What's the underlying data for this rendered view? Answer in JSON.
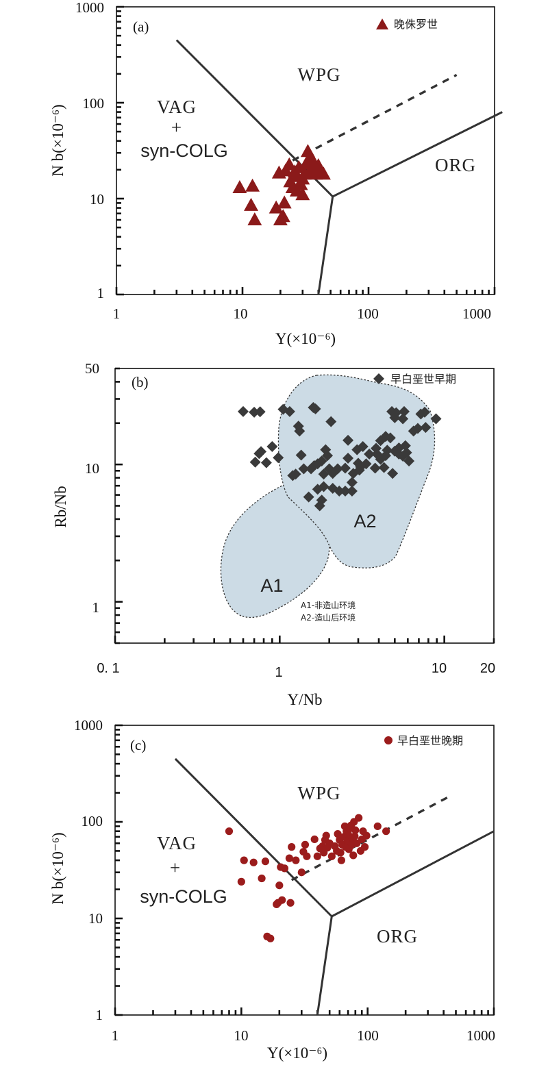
{
  "colors": {
    "triangle": "#8b1a1a",
    "diamond": "#3a3a3a",
    "circle": "#9b1c1c",
    "zone_fill": "#ccdbe5",
    "line": "#333333"
  },
  "chart_data": [
    {
      "type": "scatter",
      "panel_label": "(a)",
      "xscale": "log",
      "yscale": "log",
      "xlim": [
        1,
        1000
      ],
      "ylim": [
        1,
        1000
      ],
      "xlabel": "Y(×10⁻⁶)",
      "ylabel": "N b(×10⁻⁶)",
      "x_ticks": [
        "1",
        "10",
        "100",
        "1000"
      ],
      "y_ticks": [
        "1",
        "10",
        "100",
        "1000"
      ],
      "fields": [
        "VAG",
        "+",
        "syn-COLG",
        "WPG",
        "ORG"
      ],
      "legend_position": "top-right",
      "series": [
        {
          "name": "晚侏罗世",
          "marker": "triangle",
          "points": [
            [
              9.5,
              13
            ],
            [
              12,
              13.5
            ],
            [
              11.7,
              8.5
            ],
            [
              12.5,
              6
            ],
            [
              18.5,
              8
            ],
            [
              20,
              6
            ],
            [
              21,
              6.5
            ],
            [
              21.5,
              9
            ],
            [
              19.5,
              18.5
            ],
            [
              22,
              19.5
            ],
            [
              24,
              15
            ],
            [
              25,
              13
            ],
            [
              26,
              19
            ],
            [
              27,
              17
            ],
            [
              28,
              21
            ],
            [
              29,
              14
            ],
            [
              30,
              11
            ],
            [
              31,
              18
            ],
            [
              32,
              23
            ],
            [
              33,
              31
            ],
            [
              34,
              19
            ],
            [
              36,
              25
            ],
            [
              37,
              21
            ],
            [
              38,
              18
            ],
            [
              40,
              22
            ],
            [
              42,
              19
            ],
            [
              44,
              18
            ],
            [
              27,
              12
            ],
            [
              30,
              16
            ],
            [
              23.5,
              22.5
            ],
            [
              34,
              26
            ],
            [
              28.5,
              14
            ]
          ]
        }
      ],
      "boundaries": [
        {
          "style": "solid",
          "points": [
            [
              3,
              450
            ],
            [
              52,
              10.5
            ]
          ]
        },
        {
          "style": "solid",
          "points": [
            [
              52,
              10.5
            ],
            [
              40,
              1
            ]
          ]
        },
        {
          "style": "solid",
          "points": [
            [
              52,
              10.5
            ],
            [
              1150,
              80
            ]
          ]
        },
        {
          "style": "dashed",
          "points": [
            [
              25,
              25
            ],
            [
              500,
              195
            ]
          ]
        }
      ]
    },
    {
      "type": "scatter",
      "panel_label": "(b)",
      "xscale": "log",
      "yscale": "log",
      "xlim": [
        0.1,
        20
      ],
      "ylim": [
        0.5,
        50
      ],
      "xlabel": "Y/Nb",
      "ylabel": "Rb/Nb",
      "x_ticks": [
        "0. 1",
        "1",
        "10",
        "20"
      ],
      "y_ticks": [
        "1",
        "10",
        "50"
      ],
      "legend_position": "top-right",
      "zones": [
        {
          "label": "A1",
          "description": "A1-非造山环境"
        },
        {
          "label": "A2",
          "description": "A2-造山后环境"
        }
      ],
      "series": [
        {
          "name": "早白垩世早期",
          "marker": "diamond",
          "points": [
            [
              0.6,
              24.3
            ],
            [
              0.7,
              24
            ],
            [
              0.76,
              24.2
            ],
            [
              1.05,
              25.2
            ],
            [
              1.15,
              24.3
            ],
            [
              1.6,
              26
            ],
            [
              1.65,
              25.4
            ],
            [
              1.3,
              19
            ],
            [
              1.32,
              17.5
            ],
            [
              2.05,
              20.5
            ],
            [
              4.8,
              24.3
            ],
            [
              5.1,
              23.8
            ],
            [
              5.7,
              24.3
            ],
            [
              7.2,
              23.3
            ],
            [
              7.6,
              24
            ],
            [
              8.9,
              21.5
            ],
            [
              5.0,
              21.9
            ],
            [
              5.6,
              21.5
            ],
            [
              6.9,
              18.3
            ],
            [
              6.5,
              17.5
            ],
            [
              7.7,
              18.6
            ],
            [
              4.4,
              16
            ],
            [
              4.7,
              15.6
            ],
            [
              2.6,
              15
            ],
            [
              0.75,
              12
            ],
            [
              0.77,
              12.4
            ],
            [
              0.9,
              13.5
            ],
            [
              0.98,
              11.2
            ],
            [
              0.71,
              10.4
            ],
            [
              0.83,
              10.3
            ],
            [
              1.2,
              8.3
            ],
            [
              1.25,
              8.5
            ],
            [
              1.35,
              11.7
            ],
            [
              1.4,
              9.3
            ],
            [
              1.55,
              9.3
            ],
            [
              1.62,
              9.8
            ],
            [
              1.7,
              10.1
            ],
            [
              1.5,
              5.8
            ],
            [
              1.8,
              10.6
            ],
            [
              1.85,
              8.5
            ],
            [
              1.9,
              12.8
            ],
            [
              1.95,
              11.6
            ],
            [
              2.0,
              9.3
            ],
            [
              2.1,
              8.6
            ],
            [
              2.25,
              9.3
            ],
            [
              2.5,
              9.4
            ],
            [
              2.6,
              11.1
            ],
            [
              2.75,
              7.4
            ],
            [
              2.8,
              8.6
            ],
            [
              2.95,
              12.8
            ],
            [
              3.0,
              10.2
            ],
            [
              3.05,
              9.1
            ],
            [
              3.1,
              9.6
            ],
            [
              3.35,
              10.1
            ],
            [
              3.2,
              13.5
            ],
            [
              3.85,
              13.1
            ],
            [
              4.4,
              11.6
            ],
            [
              4.5,
              12.7
            ],
            [
              5.0,
              12.5
            ],
            [
              5.3,
              13.2
            ],
            [
              5.8,
              13.7
            ],
            [
              6.1,
              10.6
            ],
            [
              4.1,
              10.9
            ],
            [
              4.85,
              8.6
            ],
            [
              3.5,
              11.9
            ],
            [
              1.7,
              6.6
            ],
            [
              1.8,
              5.5
            ],
            [
              1.75,
              5.0
            ],
            [
              1.85,
              6.9
            ],
            [
              2.1,
              6.7
            ],
            [
              2.3,
              6.4
            ],
            [
              2.5,
              6.4
            ],
            [
              2.75,
              6.4
            ],
            [
              3.8,
              9.4
            ],
            [
              4.3,
              9.5
            ],
            [
              3.9,
              11.9
            ],
            [
              5.6,
              11.5
            ],
            [
              5.9,
              12.2
            ],
            [
              4.1,
              14.9
            ],
            [
              5.3,
              11.9
            ]
          ]
        }
      ]
    },
    {
      "type": "scatter",
      "panel_label": "(c)",
      "xscale": "log",
      "yscale": "log",
      "xlim": [
        1,
        1000
      ],
      "ylim": [
        1,
        1000
      ],
      "xlabel": "Y(×10⁻⁶)",
      "ylabel": "N b(×10⁻⁶)",
      "x_ticks": [
        "1",
        "10",
        "100",
        "1000"
      ],
      "y_ticks": [
        "1",
        "10",
        "100",
        "1000"
      ],
      "fields": [
        "VAG",
        "+",
        "syn-COLG",
        "WPG",
        "ORG"
      ],
      "legend_position": "top-right",
      "series": [
        {
          "name": "早白垩世晚期",
          "marker": "circle",
          "points": [
            [
              8,
              80
            ],
            [
              10,
              24
            ],
            [
              10.5,
              40
            ],
            [
              12.5,
              38
            ],
            [
              14.5,
              26
            ],
            [
              15.5,
              39
            ],
            [
              16,
              6.5
            ],
            [
              17,
              6.2
            ],
            [
              19,
              14
            ],
            [
              19.5,
              14.5
            ],
            [
              20,
              22
            ],
            [
              20.5,
              34
            ],
            [
              21,
              15.5
            ],
            [
              22,
              33
            ],
            [
              24.5,
              14.5
            ],
            [
              24,
              42
            ],
            [
              25,
              55
            ],
            [
              27,
              40
            ],
            [
              30,
              30
            ],
            [
              31,
              49
            ],
            [
              32,
              58
            ],
            [
              33,
              44
            ],
            [
              38,
              66
            ],
            [
              40,
              44
            ],
            [
              42,
              53
            ],
            [
              44,
              56
            ],
            [
              45,
              48
            ],
            [
              46,
              65
            ],
            [
              47,
              72
            ],
            [
              48,
              54
            ],
            [
              50,
              60
            ],
            [
              52,
              44
            ],
            [
              55,
              56
            ],
            [
              57,
              50
            ],
            [
              58,
              75
            ],
            [
              60,
              65
            ],
            [
              61,
              48
            ],
            [
              62,
              40
            ],
            [
              63,
              58
            ],
            [
              65,
              70
            ],
            [
              66,
              90
            ],
            [
              67,
              55
            ],
            [
              68,
              80
            ],
            [
              69,
              64
            ],
            [
              70,
              75
            ],
            [
              71,
              52
            ],
            [
              72,
              85
            ],
            [
              73,
              62
            ],
            [
              74,
              92
            ],
            [
              75,
              58
            ],
            [
              76,
              68
            ],
            [
              77,
              45
            ],
            [
              78,
              100
            ],
            [
              79,
              71
            ],
            [
              80,
              82
            ],
            [
              82,
              60
            ],
            [
              85,
              110
            ],
            [
              88,
              50
            ],
            [
              90,
              66
            ],
            [
              92,
              80
            ],
            [
              95,
              55
            ],
            [
              98,
              72
            ],
            [
              120,
              90
            ],
            [
              140,
              80
            ]
          ]
        }
      ],
      "boundaries": [
        {
          "style": "solid",
          "points": [
            [
              3,
              450
            ],
            [
              52,
              10.5
            ]
          ]
        },
        {
          "style": "solid",
          "points": [
            [
              52,
              10.5
            ],
            [
              40,
              1
            ]
          ]
        },
        {
          "style": "solid",
          "points": [
            [
              52,
              10.5
            ],
            [
              1000,
              80
            ]
          ]
        },
        {
          "style": "dashed",
          "points": [
            [
              25,
              25
            ],
            [
              450,
              185
            ]
          ]
        }
      ]
    }
  ]
}
